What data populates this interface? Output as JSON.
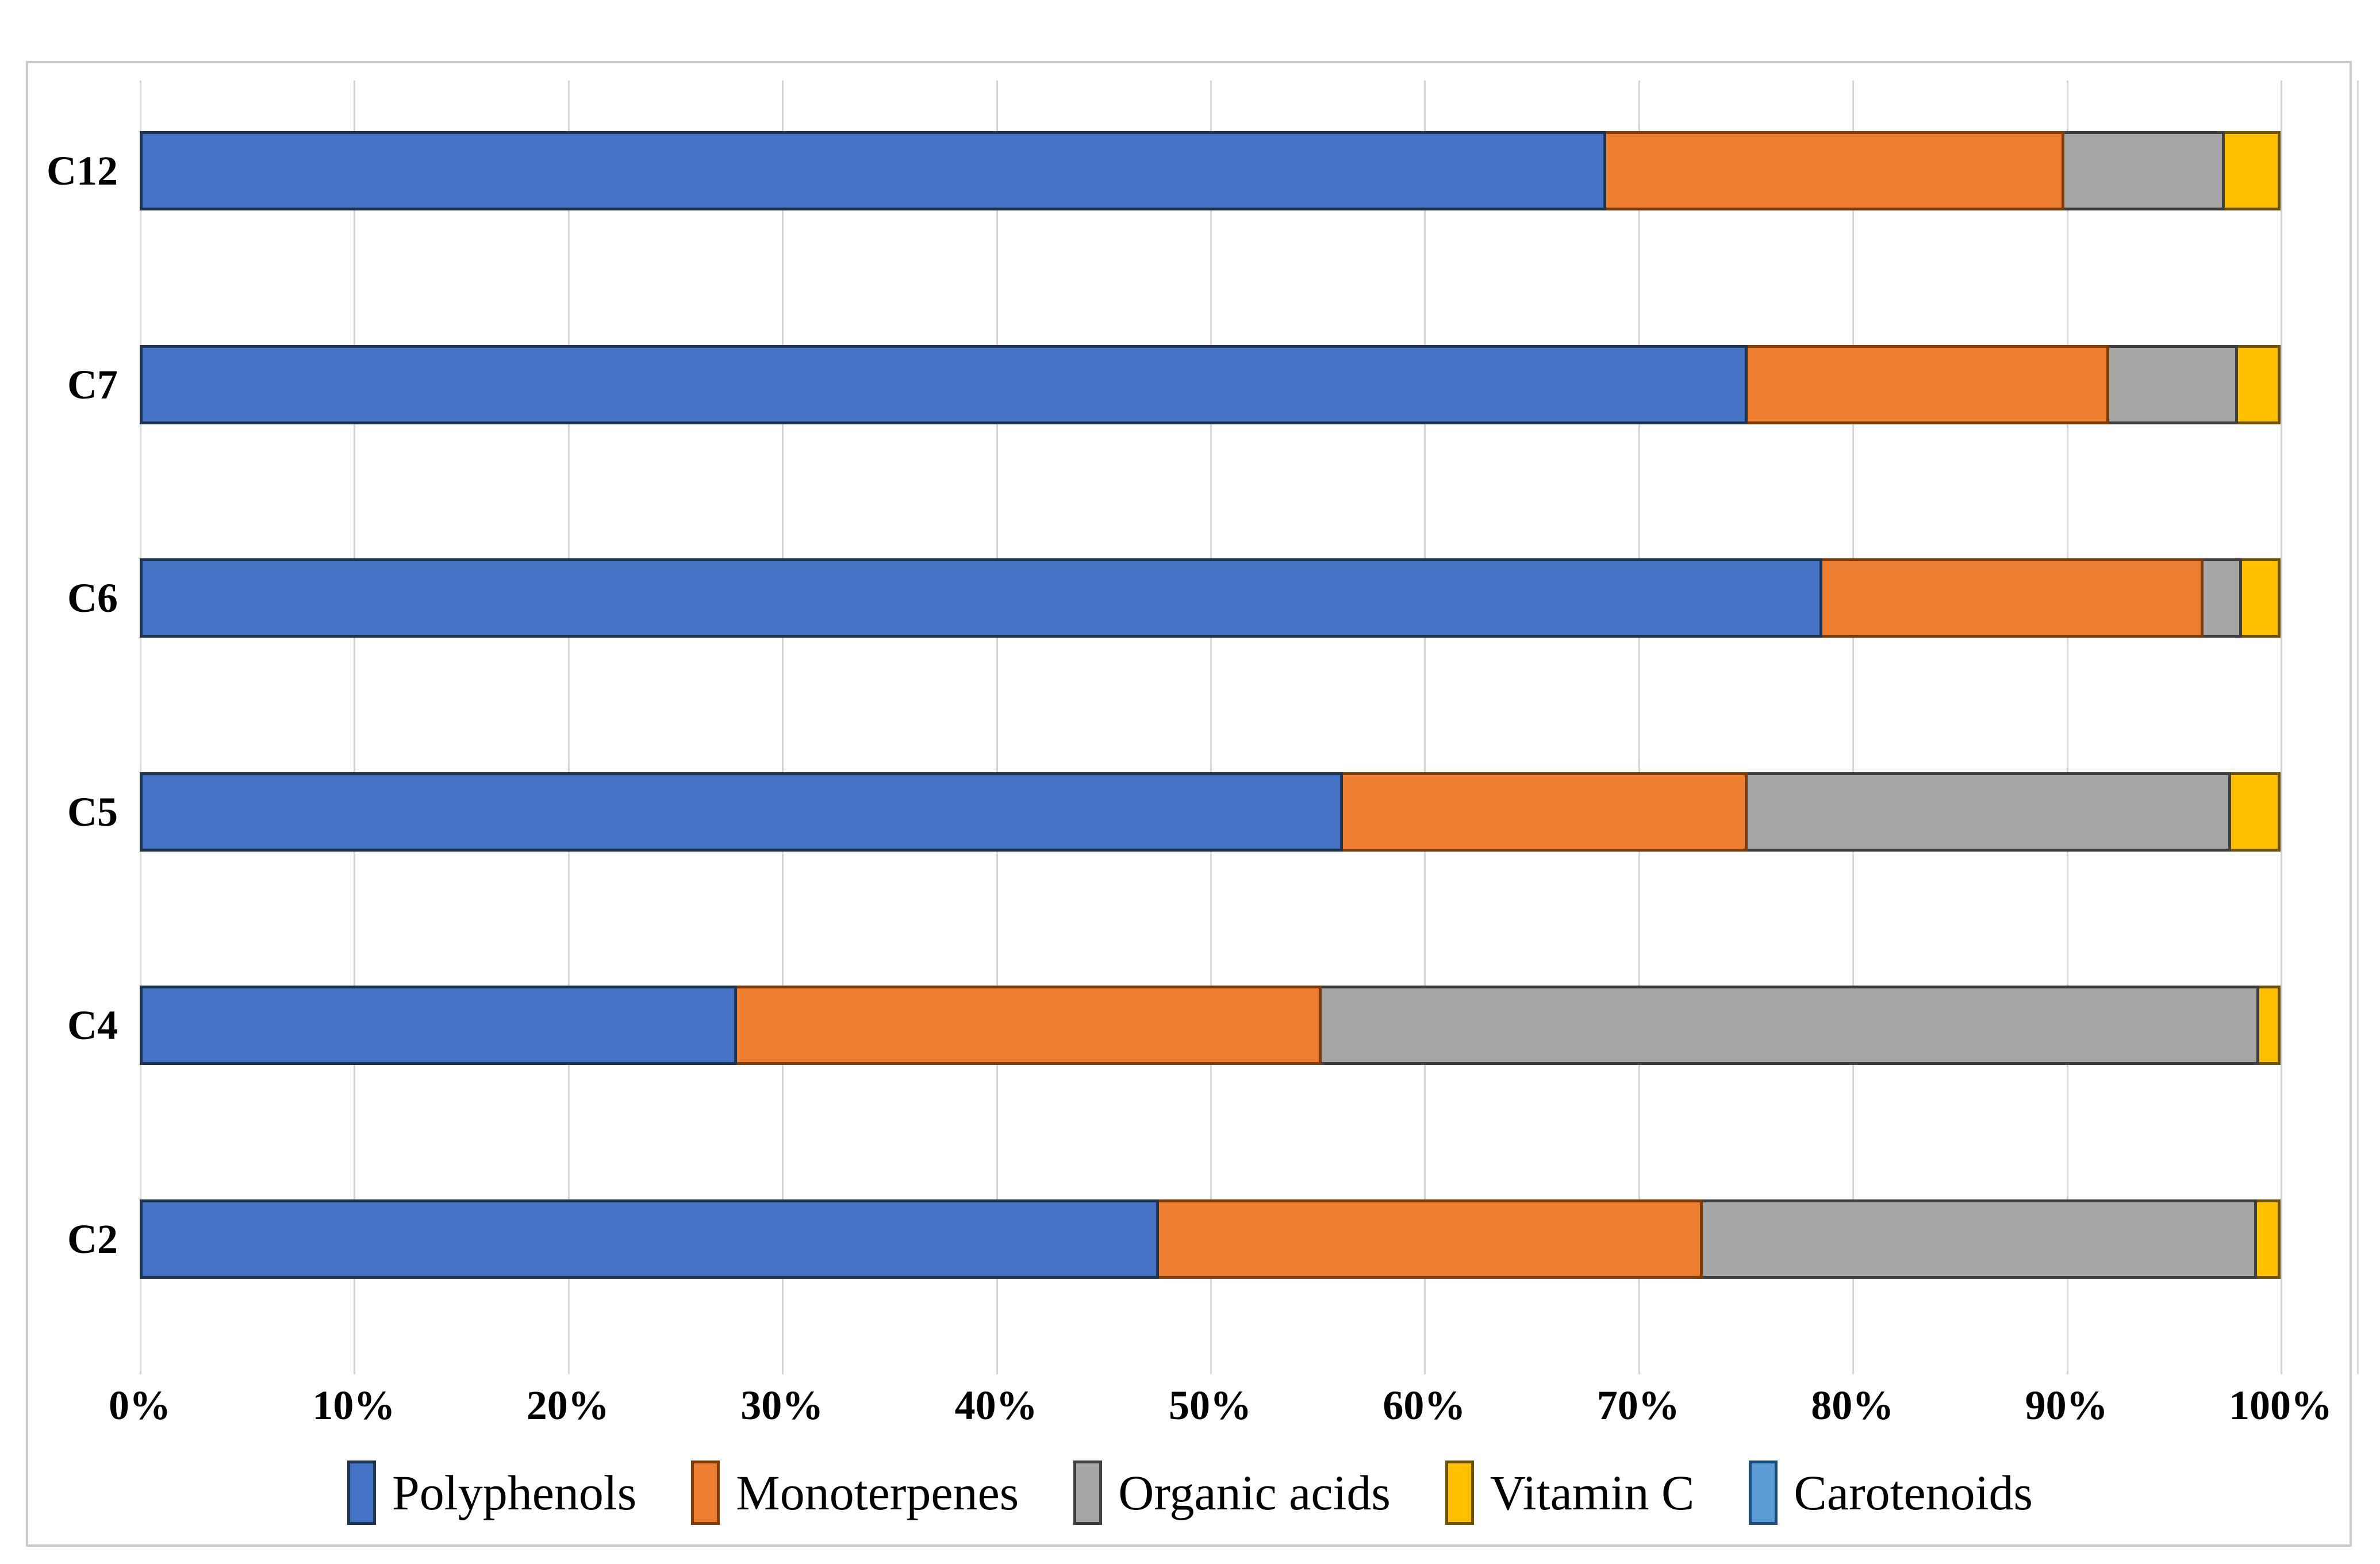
{
  "chart_data": {
    "type": "bar",
    "orientation": "horizontal-stacked",
    "title": "",
    "xlabel": "",
    "ylabel": "",
    "grid": true,
    "legend_position": "bottom",
    "xlim": [
      0,
      100
    ],
    "x_ticks": [
      "0%",
      "10%",
      "20%",
      "30%",
      "40%",
      "50%",
      "60%",
      "70%",
      "80%",
      "90%",
      "100%"
    ],
    "categories": [
      "C12",
      "C7",
      "C6",
      "C5",
      "C4",
      "C2"
    ],
    "series": [
      {
        "name": "Polyphenols",
        "color": "#4472C4",
        "border_color": "#1F3450",
        "values": [
          68.5,
          75.1,
          78.6,
          56.2,
          27.9,
          47.6
        ]
      },
      {
        "name": "Monoterpenes",
        "color": "#ED7D31",
        "border_color": "#7E3B04",
        "values": [
          21.4,
          16.9,
          17.8,
          18.9,
          27.3,
          25.4
        ]
      },
      {
        "name": "Organic acids",
        "color": "#A6A6A6",
        "border_color": "#3F3F3F",
        "values": [
          7.5,
          6.0,
          1.8,
          22.6,
          43.8,
          25.9
        ]
      },
      {
        "name": "Vitamin C",
        "color": "#FFC000",
        "border_color": "#6E5200",
        "values": [
          2.6,
          2.0,
          1.8,
          2.3,
          1.0,
          1.1
        ]
      },
      {
        "name": "Carotenoids",
        "color": "#5B9BD5",
        "border_color": "#1F4E79",
        "values": [
          0,
          0,
          0,
          0,
          0,
          0
        ]
      }
    ],
    "gridline_color": "#d6d6d6",
    "frame_border_color": "#c9c9c9"
  }
}
